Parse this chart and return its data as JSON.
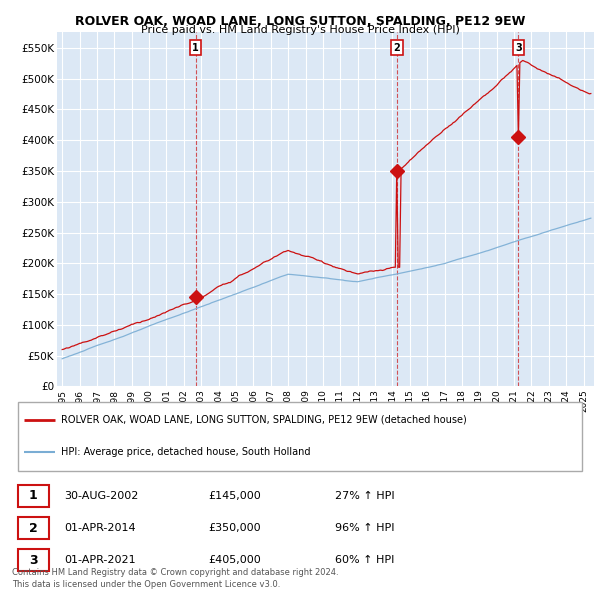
{
  "title": "ROLVER OAK, WOAD LANE, LONG SUTTON, SPALDING, PE12 9EW",
  "subtitle": "Price paid vs. HM Land Registry's House Price Index (HPI)",
  "ylim": [
    0,
    575000
  ],
  "yticks": [
    0,
    50000,
    100000,
    150000,
    200000,
    250000,
    300000,
    350000,
    400000,
    450000,
    500000,
    550000
  ],
  "ytick_labels": [
    "£0",
    "£50K",
    "£100K",
    "£150K",
    "£200K",
    "£250K",
    "£300K",
    "£350K",
    "£400K",
    "£450K",
    "£500K",
    "£550K"
  ],
  "hpi_color": "#7aadd4",
  "price_color": "#cc1111",
  "sale_years": [
    2002.67,
    2014.25,
    2021.25
  ],
  "sale_prices": [
    145000,
    350000,
    405000
  ],
  "sale_labels": [
    "1",
    "2",
    "3"
  ],
  "legend_entries": [
    "ROLVER OAK, WOAD LANE, LONG SUTTON, SPALDING, PE12 9EW (detached house)",
    "HPI: Average price, detached house, South Holland"
  ],
  "table_rows": [
    [
      "1",
      "30-AUG-2002",
      "£145,000",
      "27% ↑ HPI"
    ],
    [
      "2",
      "01-APR-2014",
      "£350,000",
      "96% ↑ HPI"
    ],
    [
      "3",
      "01-APR-2021",
      "£405,000",
      "60% ↑ HPI"
    ]
  ],
  "footnote": "Contains HM Land Registry data © Crown copyright and database right 2024.\nThis data is licensed under the Open Government Licence v3.0.",
  "background_color": "#dce8f5",
  "grid_color": "#ffffff",
  "x_start_year": 1995,
  "x_end_year": 2025
}
